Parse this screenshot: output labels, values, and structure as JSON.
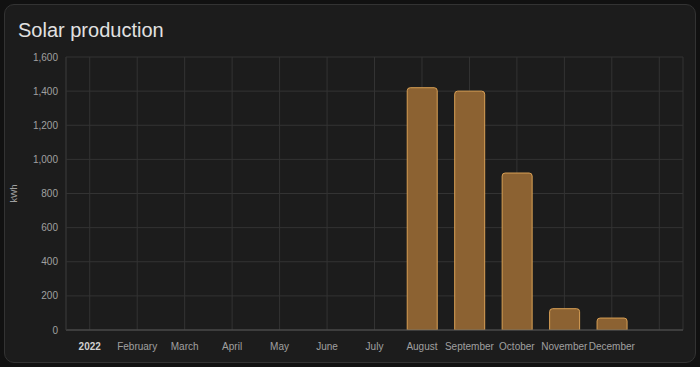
{
  "chart_data": {
    "type": "bar",
    "title": "Solar production",
    "y_label": "kWh",
    "categories": [
      "2022",
      "February",
      "March",
      "April",
      "May",
      "June",
      "July",
      "August",
      "September",
      "October",
      "November",
      "December",
      null
    ],
    "values": [
      null,
      null,
      null,
      null,
      null,
      null,
      null,
      1420,
      1400,
      920,
      125,
      70,
      null
    ],
    "color": "#8c6232",
    "ylim": [
      0,
      1600
    ],
    "yticks": [
      0,
      200,
      400,
      600,
      800,
      {
        "value": 1000,
        "label": "1,000"
      },
      {
        "value": 1200,
        "label": "1,200"
      },
      {
        "value": 1400,
        "label": "1,400"
      },
      {
        "value": 1600,
        "label": "1,600"
      }
    ],
    "grid": true
  }
}
